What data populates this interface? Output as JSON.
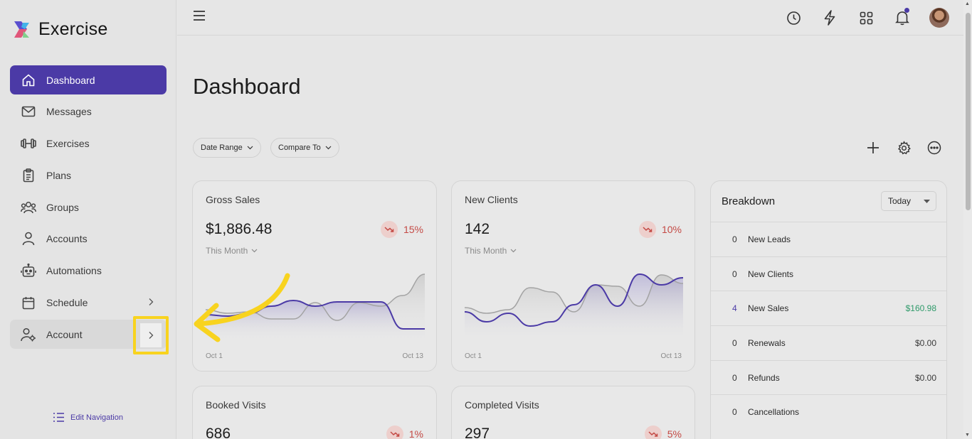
{
  "app": {
    "name": "Exercise"
  },
  "sidebar": {
    "items": [
      {
        "label": "Dashboard",
        "icon": "home-icon",
        "active": true
      },
      {
        "label": "Messages",
        "icon": "mail-icon"
      },
      {
        "label": "Exercises",
        "icon": "dumbbell-icon"
      },
      {
        "label": "Plans",
        "icon": "clipboard-icon"
      },
      {
        "label": "Groups",
        "icon": "users-icon"
      },
      {
        "label": "Accounts",
        "icon": "user-icon"
      },
      {
        "label": "Automations",
        "icon": "robot-icon"
      },
      {
        "label": "Schedule",
        "icon": "calendar-icon",
        "has_submenu": true
      },
      {
        "label": "Account",
        "icon": "user-settings-icon",
        "has_submenu": true
      }
    ],
    "edit_navigation": "Edit Navigation"
  },
  "main": {
    "title": "Dashboard",
    "filters": {
      "date_range": "Date Range",
      "compare_to": "Compare To"
    }
  },
  "cards": [
    {
      "title": "Gross Sales",
      "value": "$1,886.48",
      "change": "15%",
      "period": "This Month",
      "x_start": "Oct 1",
      "x_end": "Oct 13",
      "current": [
        0.62,
        0.64,
        0.6,
        0.5,
        0.42,
        0.5,
        0.44,
        0.44,
        0.44,
        0.82,
        0.82
      ],
      "previous": [
        0.55,
        0.6,
        0.58,
        0.68,
        0.68,
        0.45,
        0.7,
        0.45,
        0.5,
        0.35,
        0.05
      ]
    },
    {
      "title": "New Clients",
      "value": "142",
      "change": "10%",
      "period": "This Month",
      "x_start": "Oct 1",
      "x_end": "Oct 13",
      "current": [
        0.58,
        0.72,
        0.6,
        0.78,
        0.72,
        0.48,
        0.2,
        0.5,
        0.05,
        0.2,
        0.1
      ],
      "previous": [
        0.52,
        0.6,
        0.55,
        0.24,
        0.3,
        0.58,
        0.2,
        0.22,
        0.5,
        0.06,
        0.18
      ]
    },
    {
      "title": "Booked Visits",
      "value": "686",
      "change": "1%"
    },
    {
      "title": "Completed Visits",
      "value": "297",
      "change": "5%"
    }
  ],
  "breakdown": {
    "title": "Breakdown",
    "range": "Today",
    "rows": [
      {
        "count": "0",
        "label": "New Leads",
        "amount": ""
      },
      {
        "count": "0",
        "label": "New Clients",
        "amount": ""
      },
      {
        "count": "4",
        "label": "New Sales",
        "amount": "$160.98"
      },
      {
        "count": "0",
        "label": "Renewals",
        "amount": "$0.00"
      },
      {
        "count": "0",
        "label": "Refunds",
        "amount": "$0.00"
      },
      {
        "count": "0",
        "label": "Cancellations",
        "amount": ""
      }
    ]
  },
  "colors": {
    "accent": "#4b3aa6",
    "highlight": "#f8d31f",
    "negative": "#c44a45",
    "positive": "#2f9a6a"
  }
}
